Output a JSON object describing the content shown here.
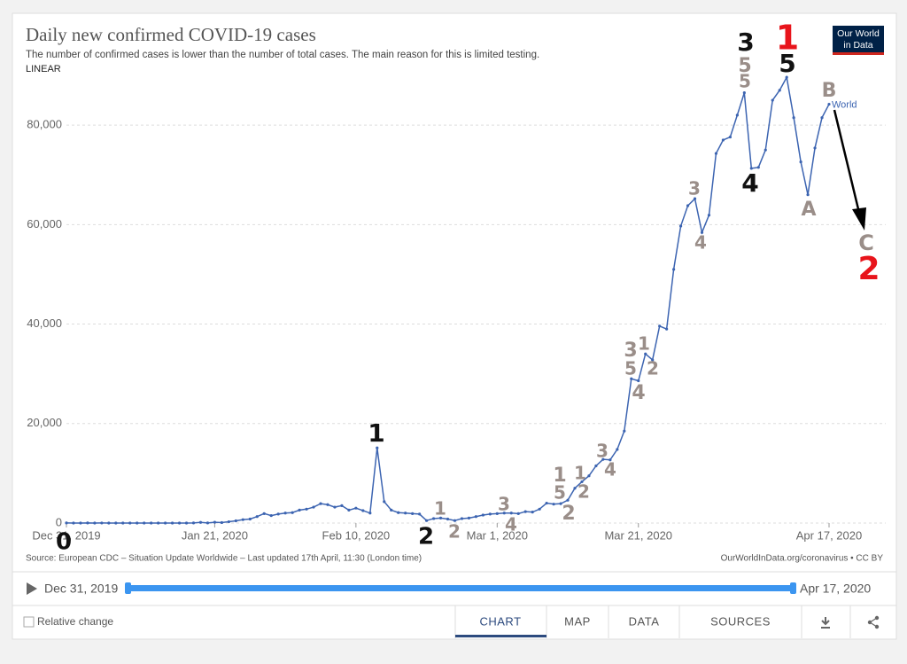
{
  "chart_data": {
    "type": "line",
    "title": "Daily new confirmed COVID-19 cases",
    "subtitle": "The number of confirmed cases is lower than the number of total cases. The main reason for this is limited testing.",
    "scale_label": "LINEAR",
    "source": "Source: European CDC – Situation Update Worldwide – Last updated 17th April, 11:30 (London time)",
    "credit": "OurWorldInData.org/coronavirus • CC BY",
    "x": [
      "2019-12-31",
      "2020-01-01",
      "2020-01-02",
      "2020-01-03",
      "2020-01-04",
      "2020-01-05",
      "2020-01-06",
      "2020-01-07",
      "2020-01-08",
      "2020-01-09",
      "2020-01-10",
      "2020-01-11",
      "2020-01-12",
      "2020-01-13",
      "2020-01-14",
      "2020-01-15",
      "2020-01-16",
      "2020-01-17",
      "2020-01-18",
      "2020-01-19",
      "2020-01-20",
      "2020-01-21",
      "2020-01-22",
      "2020-01-23",
      "2020-01-24",
      "2020-01-25",
      "2020-01-26",
      "2020-01-27",
      "2020-01-28",
      "2020-01-29",
      "2020-01-30",
      "2020-01-31",
      "2020-02-01",
      "2020-02-02",
      "2020-02-03",
      "2020-02-04",
      "2020-02-05",
      "2020-02-06",
      "2020-02-07",
      "2020-02-08",
      "2020-02-09",
      "2020-02-10",
      "2020-02-11",
      "2020-02-12",
      "2020-02-13",
      "2020-02-14",
      "2020-02-15",
      "2020-02-16",
      "2020-02-17",
      "2020-02-18",
      "2020-02-19",
      "2020-02-20",
      "2020-02-21",
      "2020-02-22",
      "2020-02-23",
      "2020-02-24",
      "2020-02-25",
      "2020-02-26",
      "2020-02-27",
      "2020-02-28",
      "2020-02-29",
      "2020-03-01",
      "2020-03-02",
      "2020-03-03",
      "2020-03-04",
      "2020-03-05",
      "2020-03-06",
      "2020-03-07",
      "2020-03-08",
      "2020-03-09",
      "2020-03-10",
      "2020-03-11",
      "2020-03-12",
      "2020-03-13",
      "2020-03-14",
      "2020-03-15",
      "2020-03-16",
      "2020-03-17",
      "2020-03-18",
      "2020-03-19",
      "2020-03-20",
      "2020-03-21",
      "2020-03-22",
      "2020-03-23",
      "2020-03-24",
      "2020-03-25",
      "2020-03-26",
      "2020-03-27",
      "2020-03-28",
      "2020-03-29",
      "2020-03-30",
      "2020-03-31",
      "2020-04-01",
      "2020-04-02",
      "2020-04-03",
      "2020-04-04",
      "2020-04-05",
      "2020-04-06",
      "2020-04-07",
      "2020-04-08",
      "2020-04-09",
      "2020-04-10",
      "2020-04-11",
      "2020-04-12",
      "2020-04-13",
      "2020-04-14",
      "2020-04-15",
      "2020-04-16",
      "2020-04-17"
    ],
    "series": [
      {
        "name": "World",
        "color": "#3c64b1",
        "values": [
          27,
          0,
          0,
          17,
          0,
          15,
          0,
          0,
          0,
          0,
          0,
          0,
          0,
          1,
          0,
          1,
          0,
          4,
          17,
          136,
          19,
          150,
          100,
          260,
          450,
          680,
          800,
          1300,
          1900,
          1500,
          1800,
          2000,
          2100,
          2600,
          2800,
          3200,
          3900,
          3700,
          3200,
          3500,
          2600,
          3000,
          2500,
          2000,
          15100,
          4300,
          2600,
          2100,
          2000,
          1900,
          1800,
          500,
          900,
          1000,
          800,
          500,
          900,
          1000,
          1300,
          1600,
          1800,
          1900,
          2000,
          2000,
          1900,
          2300,
          2200,
          2800,
          4000,
          3800,
          3900,
          4600,
          7000,
          8300,
          9500,
          11500,
          12800,
          12700,
          14800,
          18500,
          29000,
          28600,
          34000,
          32800,
          39600,
          39000,
          51000,
          59700,
          63800,
          65200,
          58400,
          61900,
          74300,
          77000,
          77600,
          82000,
          86500,
          71300,
          71500,
          75000,
          85000,
          87000,
          89600,
          81500,
          72600,
          66000,
          75400,
          81500,
          84200
        ]
      }
    ],
    "xlim": [
      "2019-12-31",
      "2020-04-17"
    ],
    "xticks": [
      {
        "value": "2019-12-31",
        "label": "Dec 31, 2019"
      },
      {
        "value": "2020-01-21",
        "label": "Jan 21, 2020"
      },
      {
        "value": "2020-02-10",
        "label": "Feb 10, 2020"
      },
      {
        "value": "2020-03-01",
        "label": "Mar 1, 2020"
      },
      {
        "value": "2020-03-21",
        "label": "Mar 21, 2020"
      },
      {
        "value": "2020-04-17",
        "label": "Apr 17, 2020"
      }
    ],
    "ylim": [
      0,
      90000
    ],
    "yticks": [
      0,
      {
        "value": 20000,
        "label": "20,000"
      },
      {
        "value": 40000,
        "label": "40,000"
      },
      {
        "value": 60000,
        "label": "60,000"
      },
      {
        "value": 80000,
        "label": "80,000"
      }
    ],
    "grid": true,
    "annotations": [
      {
        "text": "0",
        "color": "#111111"
      },
      {
        "text": "1",
        "color": "#111111"
      },
      {
        "text": "2",
        "color": "#111111"
      },
      {
        "text": "1",
        "color": "#9a8e89"
      },
      {
        "text": "2",
        "color": "#9a8e89"
      },
      {
        "text": "3",
        "color": "#9a8e89"
      },
      {
        "text": "4",
        "color": "#9a8e89"
      },
      {
        "text": "1",
        "color": "#9a8e89"
      },
      {
        "text": "5",
        "color": "#9a8e89"
      },
      {
        "text": "2",
        "color": "#9a8e89"
      },
      {
        "text": "1",
        "color": "#9a8e89"
      },
      {
        "text": "2",
        "color": "#9a8e89"
      },
      {
        "text": "3",
        "color": "#9a8e89"
      },
      {
        "text": "4",
        "color": "#9a8e89"
      },
      {
        "text": "3",
        "color": "#9a8e89"
      },
      {
        "text": "5",
        "color": "#9a8e89"
      },
      {
        "text": "4",
        "color": "#9a8e89"
      },
      {
        "text": "1",
        "color": "#9a8e89"
      },
      {
        "text": "2",
        "color": "#9a8e89"
      },
      {
        "text": "3",
        "color": "#9a8e89"
      },
      {
        "text": "4",
        "color": "#9a8e89"
      },
      {
        "text": "3",
        "color": "#111111"
      },
      {
        "text": "5",
        "color": "#9a8e89"
      },
      {
        "text": "5",
        "color": "#9a8e89"
      },
      {
        "text": "4",
        "color": "#111111"
      },
      {
        "text": "1",
        "color": "#e8141b"
      },
      {
        "text": "5",
        "color": "#111111"
      },
      {
        "text": "A",
        "color": "#9a8e89"
      },
      {
        "text": "B",
        "color": "#9a8e89"
      },
      {
        "text": "C",
        "color": "#9a8e89"
      },
      {
        "text": "2",
        "color": "#e8141b"
      }
    ]
  },
  "ui": {
    "logo": [
      "Our World",
      "in Data"
    ],
    "timeline": {
      "start": "Dec 31, 2019",
      "end": "Apr 17, 2020"
    },
    "relative_change": "Relative change",
    "tabs": [
      "CHART",
      "MAP",
      "DATA",
      "SOURCES"
    ]
  }
}
